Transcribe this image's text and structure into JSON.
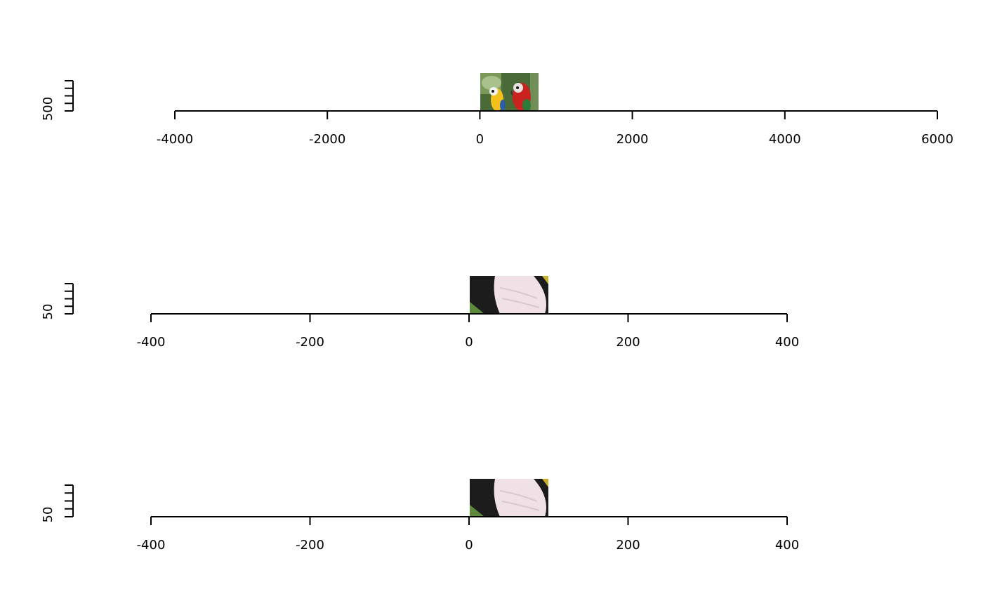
{
  "colors": {
    "background": "#ffffff",
    "axis": "#000000",
    "parrot_background": "#4f7d3a",
    "macaw_red": "#c8231f",
    "macaw_yellow": "#f2c21a",
    "macaw_blue": "#2c5ea8",
    "feather_white": "#f0dfe6",
    "feather_black": "#1c1c1c"
  },
  "chart_data": [
    {
      "type": "image",
      "image": "parrots-photo",
      "x_axis": {
        "ticks": [
          -4000,
          -2000,
          0,
          2000,
          4000,
          6000
        ],
        "range": [
          -4000,
          6000
        ]
      },
      "y_axis": {
        "ticks_labeled": [
          500
        ],
        "ticks_unlabeled_count": 4
      },
      "image_extent_x": [
        0,
        768
      ]
    },
    {
      "type": "image",
      "image": "parrot-feather-crop",
      "x_axis": {
        "ticks": [
          -400,
          -200,
          0,
          200,
          400
        ],
        "range": [
          -400,
          400
        ]
      },
      "y_axis": {
        "ticks_labeled": [
          50
        ],
        "ticks_unlabeled_count": 4
      },
      "image_extent_x": [
        0,
        100
      ]
    },
    {
      "type": "image",
      "image": "parrot-feather-crop",
      "x_axis": {
        "ticks": [
          -400,
          -200,
          0,
          200,
          400
        ],
        "range": [
          -400,
          400
        ]
      },
      "y_axis": {
        "ticks_labeled": [
          50
        ],
        "ticks_unlabeled_count": 4
      },
      "image_extent_x": [
        0,
        100
      ]
    }
  ]
}
